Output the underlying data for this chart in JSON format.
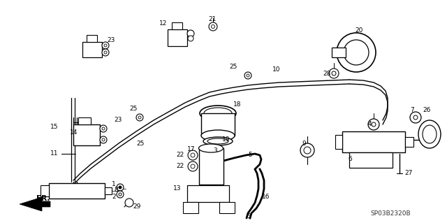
{
  "bg_color": "#ffffff",
  "fig_width": 6.4,
  "fig_height": 3.19,
  "diagram_code": "SP03B2320B"
}
